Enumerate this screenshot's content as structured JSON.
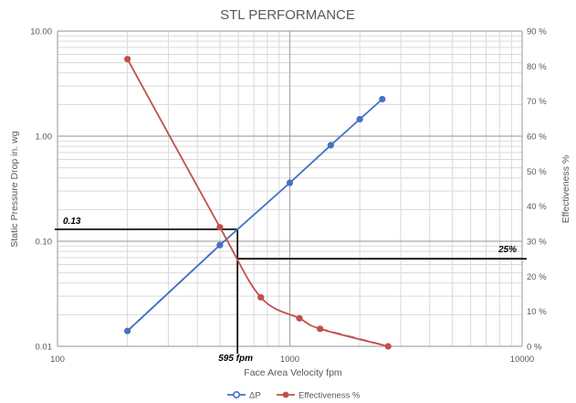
{
  "chart_data": {
    "type": "line",
    "title": "STL PERFORMANCE",
    "xlabel": "Face Area Velocity fpm",
    "ylabel": "Static Pressure Drop in. wg",
    "y2label": "Effectiveness %",
    "x_scale": "log",
    "y_scale": "log",
    "xlim": [
      100,
      10000
    ],
    "ylim": [
      0.01,
      10
    ],
    "y2lim": [
      0,
      90
    ],
    "x_ticks": [
      "100",
      "1000",
      "10000"
    ],
    "y_ticks": [
      "0.01",
      "0.10",
      "1.00",
      "10.00"
    ],
    "y2_ticks": [
      "0 %",
      "10 %",
      "20 %",
      "30 %",
      "40 %",
      "50 %",
      "60 %",
      "70 %",
      "80 %",
      "90 %"
    ],
    "grid": true,
    "legend_position": "bottom",
    "series": [
      {
        "name": "ΔP",
        "axis": "left",
        "color": "#4472C4",
        "points": [
          {
            "x": 200,
            "y": 0.014
          },
          {
            "x": 500,
            "y": 0.092
          },
          {
            "x": 1000,
            "y": 0.36
          },
          {
            "x": 1500,
            "y": 0.82
          },
          {
            "x": 2000,
            "y": 1.45
          },
          {
            "x": 2500,
            "y": 2.25
          }
        ],
        "dashed_range": [
          200,
          500
        ]
      },
      {
        "name": "Effectiveness %",
        "axis": "right",
        "color": "#C0504D",
        "points": [
          {
            "x": 200,
            "y": 82
          },
          {
            "x": 500,
            "y": 34
          },
          {
            "x": 750,
            "y": 14
          },
          {
            "x": 1100,
            "y": 8
          },
          {
            "x": 1350,
            "y": 5
          },
          {
            "x": 2650,
            "y": 0
          }
        ],
        "dashed_range": [
          1350,
          2650
        ]
      }
    ],
    "annotations": [
      {
        "label": "0.13",
        "axis": "left",
        "y": 0.13,
        "x_end": 595
      },
      {
        "label": "25%",
        "axis": "right",
        "y": 25,
        "x_start": 595
      },
      {
        "label": "595 fpm",
        "x": 595
      }
    ]
  }
}
